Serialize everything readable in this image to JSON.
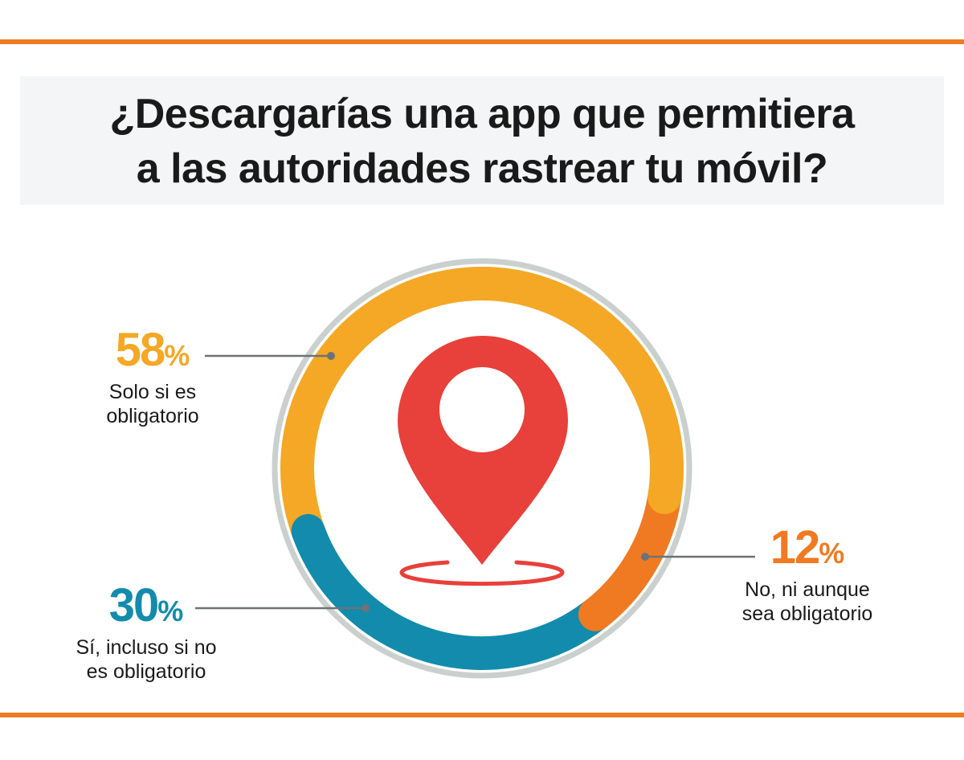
{
  "colors": {
    "rule": "#f07a22",
    "ring": "#c9d0cd",
    "leader": "#6d7278",
    "pin": "#e8403a"
  },
  "title": {
    "line1": "¿Descargarías una app que permitiera",
    "line2": "a las autoridades rastrear tu móvil?"
  },
  "chart_data": {
    "type": "pie",
    "variant": "donut",
    "title": "¿Descargarías una app que permitiera a las autoridades rastrear tu móvil?",
    "unit": "%",
    "center_icon": "map-pin-icon",
    "slices": [
      {
        "key": "no",
        "value": 12,
        "label": "12",
        "pct": "%",
        "line1": "No, ni aunque",
        "line2": "sea obligatorio",
        "color": "#f07a22"
      },
      {
        "key": "si",
        "value": 30,
        "label": "30",
        "pct": "%",
        "line1": "Sí, incluso si no",
        "line2": "es obligatorio",
        "color": "#128bac"
      },
      {
        "key": "solo",
        "value": 58,
        "label": "58",
        "pct": "%",
        "line1": "Solo si es",
        "line2": "obligatorio",
        "color": "#f4a825"
      }
    ]
  }
}
